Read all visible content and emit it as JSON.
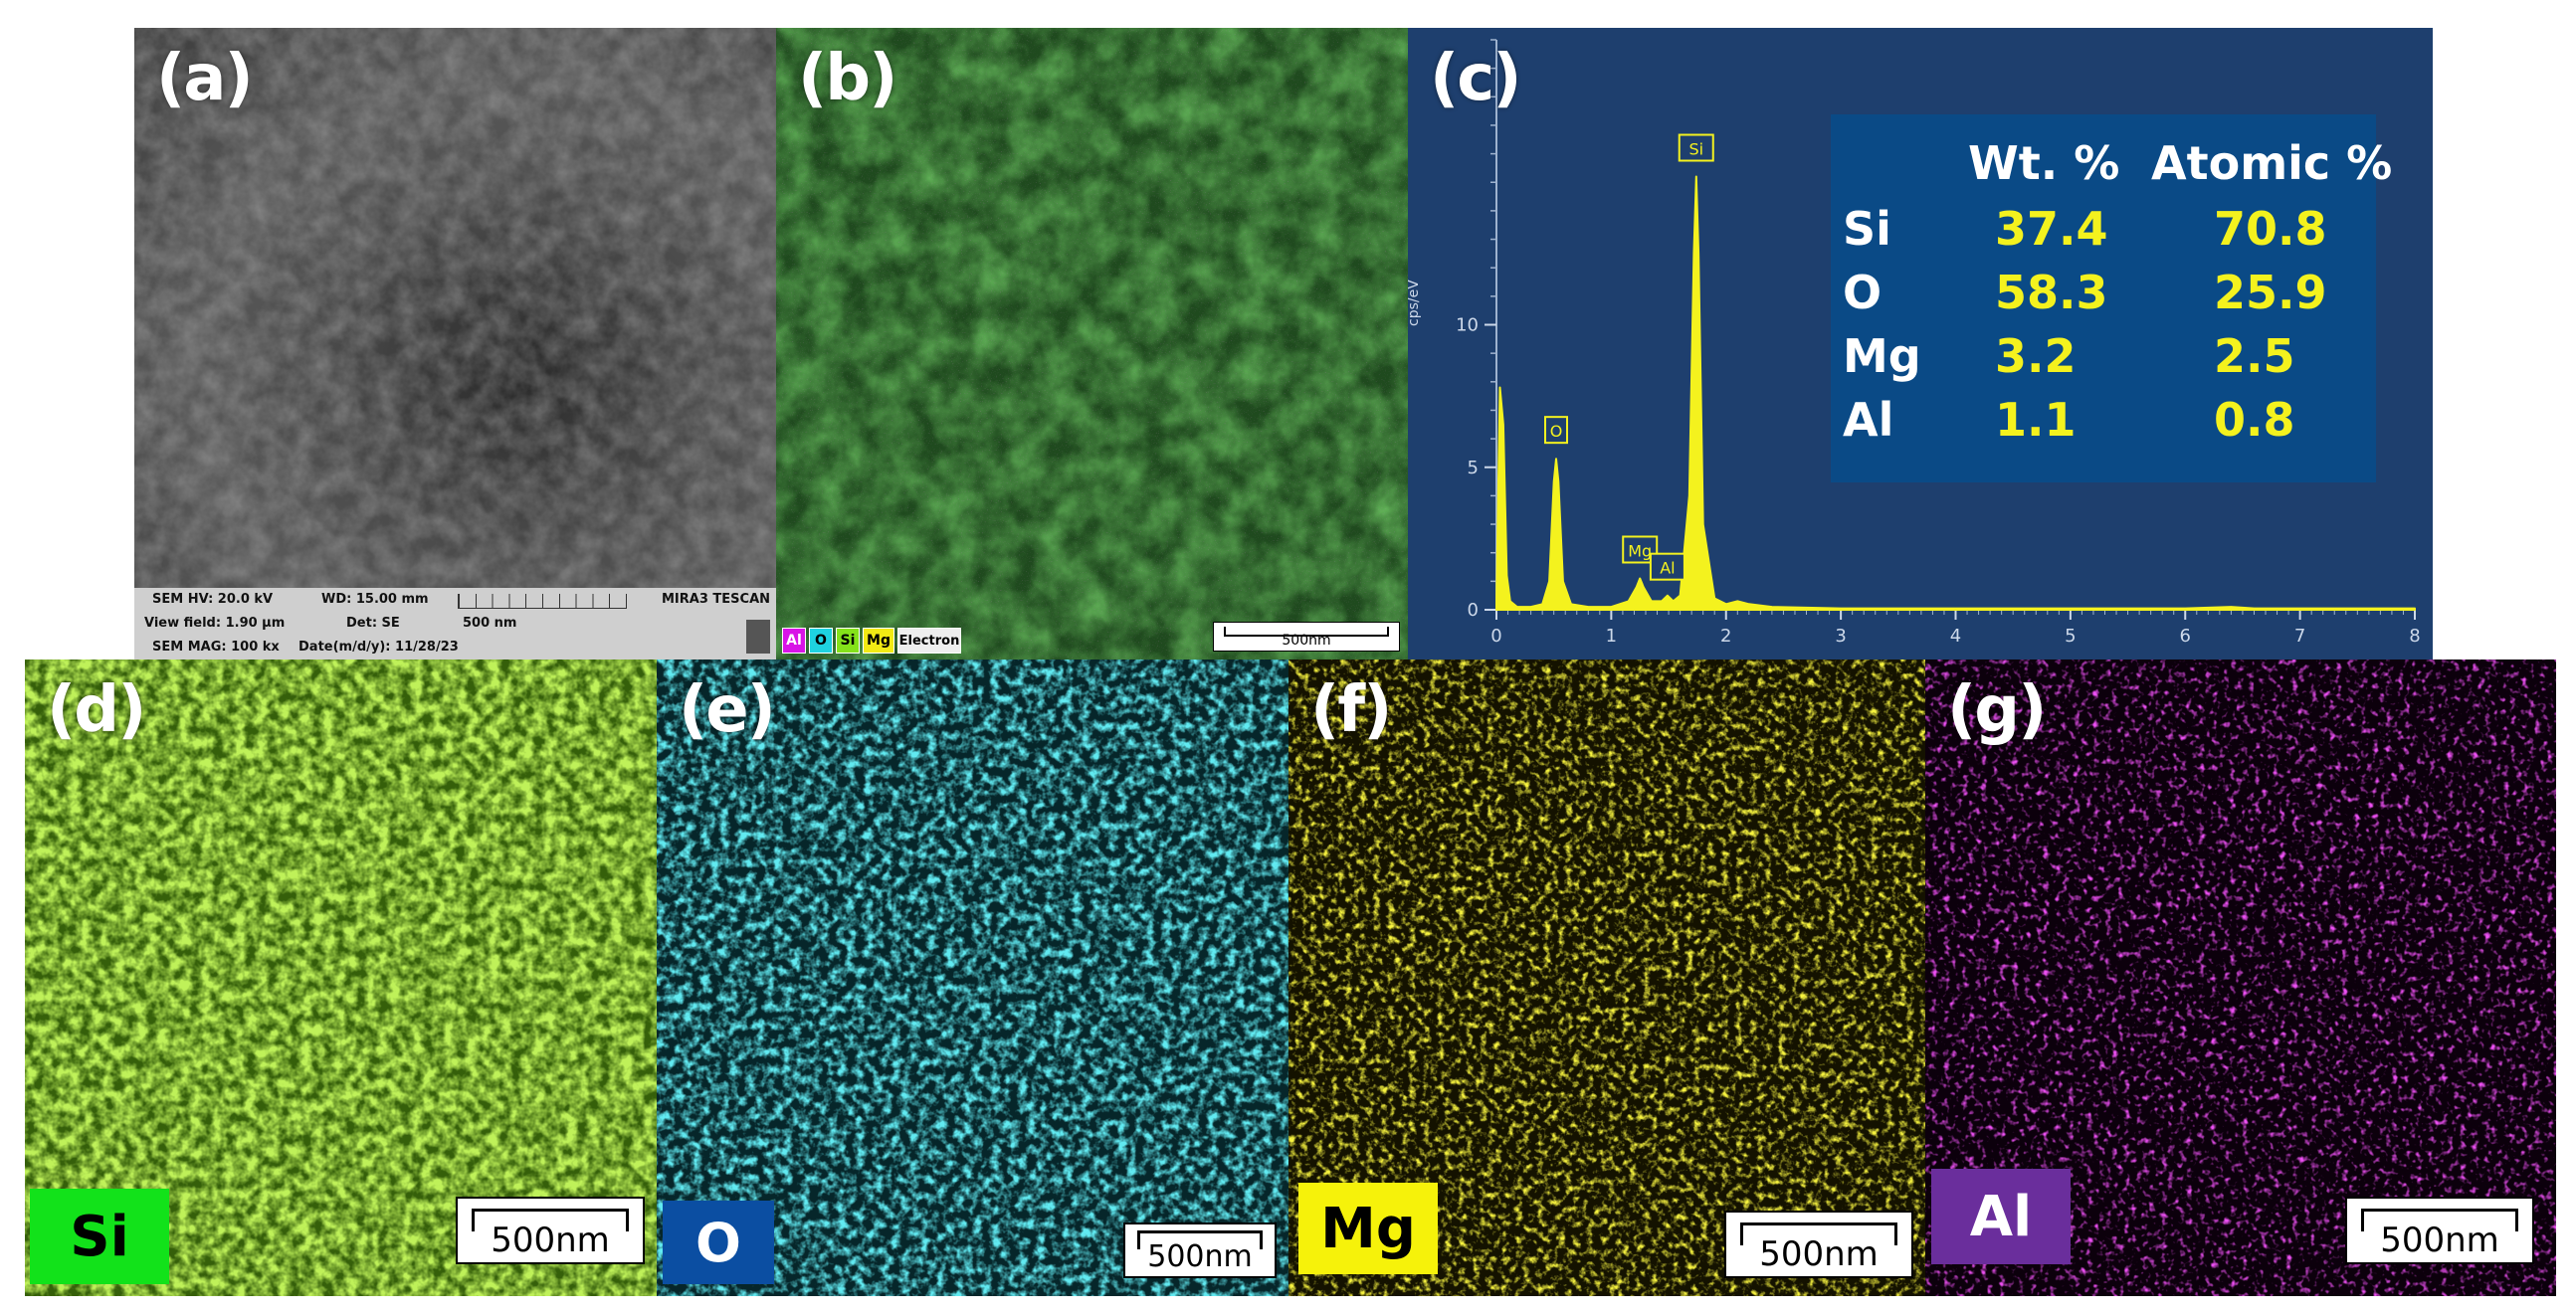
{
  "panels": {
    "a": {
      "label": "(a)"
    },
    "b": {
      "label": "(b)"
    },
    "c": {
      "label": "(c)"
    },
    "d": {
      "label": "(d)",
      "element": "Si",
      "scale": "500nm"
    },
    "e": {
      "label": "(e)",
      "element": "O",
      "scale": "500nm"
    },
    "f": {
      "label": "(f)",
      "element": "Mg",
      "scale": "500nm"
    },
    "g": {
      "label": "(g)",
      "element": "Al",
      "scale": "500nm"
    }
  },
  "sem_info": {
    "hv": "SEM HV: 20.0 kV",
    "wd": "WD: 15.00 mm",
    "brand": "MIRA3 TESCAN",
    "view_field": "View field: 1.90 µm",
    "det": "Det: SE",
    "scale": "500 nm",
    "mag": "SEM MAG: 100 kx",
    "date": "Date(m/d/y): 11/28/23"
  },
  "overlay_legend": [
    "Al",
    "O",
    "Si",
    "Mg",
    "Electron"
  ],
  "overlay_scale": "500nm",
  "colors": {
    "si": "#84e21a",
    "o": "#1ed2e0",
    "mg": "#f2ea14",
    "al": "#d814e6",
    "si_chip": "#12e21a",
    "o_chip": "#0b4ea2",
    "mg_chip": "#f6f20a",
    "al_chip": "#6a2e9c",
    "spectrum_bg": "#1e3f6e",
    "spectrum_line": "#f4f21e"
  },
  "table": {
    "headers": [
      "Wt. %",
      "Atomic %"
    ],
    "rows": [
      {
        "el": "Si",
        "wt": "37.4",
        "at": "70.8"
      },
      {
        "el": "O",
        "wt": "58.3",
        "at": "25.9"
      },
      {
        "el": "Mg",
        "wt": "3.2",
        "at": "2.5"
      },
      {
        "el": "Al",
        "wt": "1.1",
        "at": "0.8"
      }
    ]
  },
  "chart_data": {
    "type": "line",
    "ylabel": "cps/eV",
    "xlim": [
      0,
      8
    ],
    "ylim": [
      0,
      20
    ],
    "x_ticks": [
      "0",
      "1",
      "2",
      "3",
      "4",
      "5",
      "6",
      "7",
      "8"
    ],
    "y_ticks": [
      "0",
      "5",
      "10"
    ],
    "peaks": [
      {
        "label": "O",
        "x": 0.52,
        "y": 5.3
      },
      {
        "label": "Mg",
        "x": 1.25,
        "y": 1.1
      },
      {
        "label": "Al",
        "x": 1.49,
        "y": 0.5
      },
      {
        "label": "Si",
        "x": 1.74,
        "y": 15.2
      }
    ],
    "series": [
      {
        "x": [
          0.0,
          0.03,
          0.06,
          0.09,
          0.12,
          0.18,
          0.3,
          0.4,
          0.46,
          0.5,
          0.52,
          0.54,
          0.58,
          0.65,
          0.8,
          1.0,
          1.15,
          1.22,
          1.25,
          1.28,
          1.35,
          1.44,
          1.49,
          1.54,
          1.6,
          1.68,
          1.72,
          1.74,
          1.76,
          1.8,
          1.9,
          2.0,
          2.1,
          2.2,
          2.4,
          3.0,
          4.0,
          5.0,
          6.0,
          6.4,
          6.6,
          7.0,
          8.0
        ],
        "y": [
          0.2,
          7.8,
          6.5,
          1.2,
          0.3,
          0.1,
          0.1,
          0.2,
          1.0,
          4.5,
          5.3,
          4.5,
          1.0,
          0.2,
          0.1,
          0.1,
          0.3,
          0.8,
          1.1,
          0.8,
          0.3,
          0.3,
          0.5,
          0.3,
          0.5,
          4.0,
          12.5,
          15.2,
          12.5,
          3.0,
          0.4,
          0.2,
          0.3,
          0.2,
          0.1,
          0.05,
          0.05,
          0.05,
          0.05,
          0.1,
          0.05,
          0.05,
          0.05
        ]
      }
    ]
  }
}
